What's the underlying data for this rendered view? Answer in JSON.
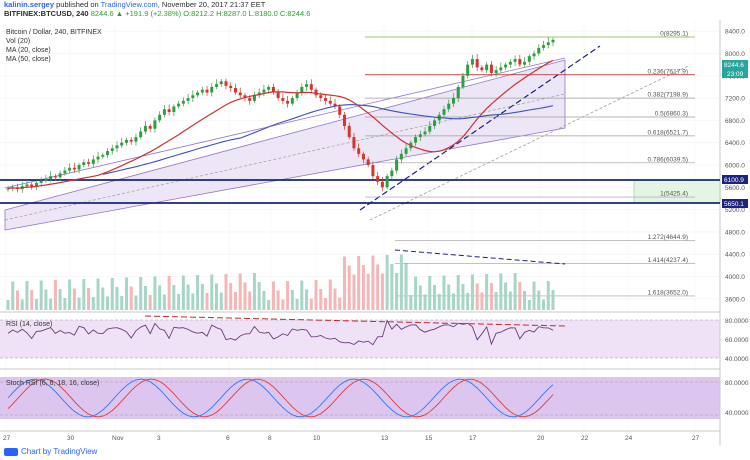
{
  "header": {
    "author": "kalinin.sergey",
    "published_text": "published on",
    "site": "TradingView.com",
    "date": ", November 20, 2017 21:37 EET",
    "symbol_line": "BITFINEX:BTCUSD, 240",
    "ohlc": "8244.6 ▲ +191.9 (+2.38%) O:8212.2 H:8287.0 L:8180.0 C:8244.6"
  },
  "legend": {
    "title": "Bitcoin / Dollar, 240, BITFINEX",
    "vol": "Vol (20)",
    "ma20": "MA (20, close)",
    "ma50": "MA (50, close)",
    "rsi": "RSI (14, close)",
    "stoch": "Stoch RSI (6, 6, 18, 16, close)"
  },
  "footer": {
    "text": "Chart by TradingView"
  },
  "colors": {
    "up": "#26a69a",
    "down": "#ef5350",
    "green_candle": "#2e9e3e",
    "red_candle": "#d9322d",
    "ma20": "#d32f2f",
    "ma50": "#3f51b5",
    "channel": "#9575cd",
    "fib": "#555555",
    "support": "#1a237e",
    "pane_purple": "#e9dcf5"
  },
  "chart_data": {
    "type": "candlestick",
    "price_axis": {
      "min": 3400,
      "max": 8600,
      "ticks": [
        "8400.0",
        "8000.0",
        "7600.0",
        "7200.0",
        "6800.0",
        "6400.0",
        "6000.0",
        "5600.0",
        "5200.0",
        "4800.0",
        "4400.0",
        "4000.0",
        "3600.0"
      ]
    },
    "x_axis_labels": [
      "27",
      "30",
      "Nov",
      "3",
      "6",
      "8",
      "10",
      "13",
      "15",
      "17",
      "20",
      "22",
      "24",
      "27"
    ],
    "price_badges": {
      "last": "8244.6",
      "countdown": "23:09",
      "support_upper": "6100.9",
      "support_lower": "5650.1"
    },
    "fib_levels": [
      {
        "label": "0(8295.1)",
        "value": 8295.1
      },
      {
        "label": "0.236(7617.9)",
        "value": 7617.9
      },
      {
        "label": "0.382(7198.9)",
        "value": 7198.9
      },
      {
        "label": "0.5(6860.3)",
        "value": 6860.3
      },
      {
        "label": "0.618(6521.7)",
        "value": 6521.7
      },
      {
        "label": "0.786(6039.5)",
        "value": 6039.5
      },
      {
        "label": "1(5425.4)",
        "value": 5425.4
      },
      {
        "label": "1.272(4644.9)",
        "value": 4644.9
      },
      {
        "label": "1.414(4237.4)",
        "value": 4237.4
      },
      {
        "label": "1.618(3652.0)",
        "value": 3652.0
      }
    ],
    "closes": [
      5580,
      5600,
      5570,
      5620,
      5650,
      5610,
      5680,
      5720,
      5750,
      5800,
      5780,
      5850,
      5900,
      5950,
      5920,
      6000,
      6050,
      6020,
      6100,
      6150,
      6180,
      6250,
      6300,
      6350,
      6400,
      6450,
      6420,
      6500,
      6600,
      6700,
      6650,
      6800,
      6900,
      7000,
      6950,
      7050,
      7100,
      7150,
      7200,
      7250,
      7300,
      7350,
      7300,
      7400,
      7450,
      7500,
      7420,
      7380,
      7300,
      7250,
      7200,
      7150,
      7250,
      7300,
      7350,
      7400,
      7300,
      7200,
      7150,
      7100,
      7200,
      7300,
      7400,
      7450,
      7350,
      7250,
      7200,
      7150,
      7100,
      7050,
      6900,
      6700,
      6500,
      6300,
      6200,
      6100,
      6000,
      5800,
      5700,
      5600,
      5800,
      5900,
      6100,
      6200,
      6300,
      6400,
      6500,
      6550,
      6600,
      6700,
      6800,
      6900,
      7000,
      7100,
      7200,
      7400,
      7600,
      7800,
      7900,
      7750,
      7700,
      7800,
      7650,
      7700,
      7750,
      7800,
      7850,
      7900,
      7800,
      7850,
      7950,
      8000,
      8100,
      8150,
      8200,
      8244.6
    ],
    "volume_axis": {
      "max": 120
    },
    "rsi": {
      "min": 20,
      "max": 100,
      "ticks": [
        "80.0000",
        "60.0000",
        "40.0000"
      ]
    },
    "stoch": {
      "min": 0,
      "max": 100,
      "ticks": [
        "80.0000",
        "40.0000"
      ]
    }
  }
}
